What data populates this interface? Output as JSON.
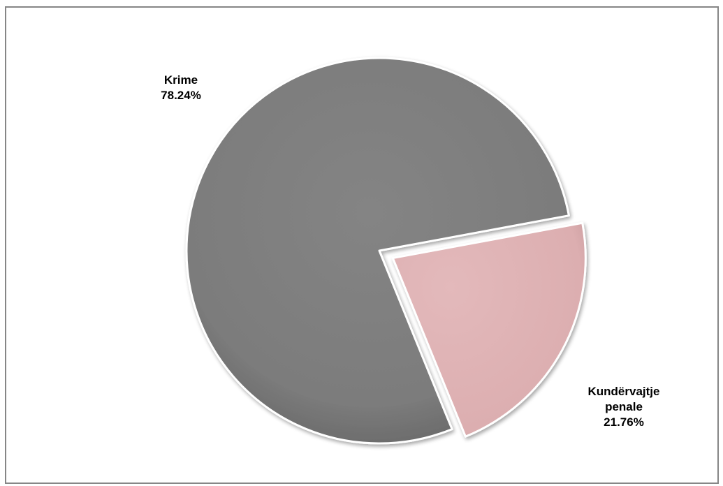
{
  "chart_data": {
    "type": "pie",
    "slices": [
      {
        "label_lines": [
          "Krime"
        ],
        "percent_label": "78.24%",
        "value": 78.24,
        "color": "#808080",
        "exploded": false
      },
      {
        "label_lines": [
          "Kundërvajtje",
          "penale"
        ],
        "percent_label": "21.76%",
        "value": 21.76,
        "color": "#e0b4b6",
        "exploded": true
      }
    ],
    "legend": "none",
    "data_labels": "outside"
  }
}
